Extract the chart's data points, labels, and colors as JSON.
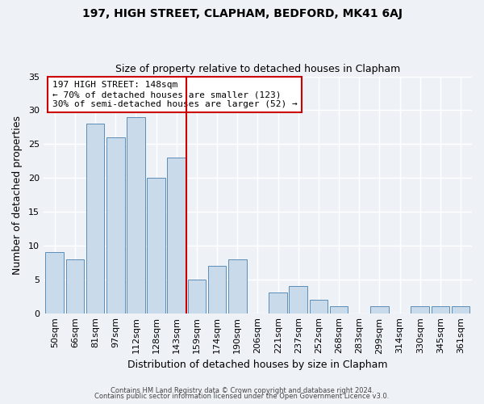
{
  "title": "197, HIGH STREET, CLAPHAM, BEDFORD, MK41 6AJ",
  "subtitle": "Size of property relative to detached houses in Clapham",
  "xlabel": "Distribution of detached houses by size in Clapham",
  "ylabel": "Number of detached properties",
  "bar_labels": [
    "50sqm",
    "66sqm",
    "81sqm",
    "97sqm",
    "112sqm",
    "128sqm",
    "143sqm",
    "159sqm",
    "174sqm",
    "190sqm",
    "206sqm",
    "221sqm",
    "237sqm",
    "252sqm",
    "268sqm",
    "283sqm",
    "299sqm",
    "314sqm",
    "330sqm",
    "345sqm",
    "361sqm"
  ],
  "bar_values": [
    9,
    8,
    28,
    26,
    29,
    20,
    23,
    5,
    7,
    8,
    0,
    3,
    4,
    2,
    1,
    0,
    1,
    0,
    1,
    1,
    1
  ],
  "bar_color": "#c9daea",
  "bar_edgecolor": "#5b8db8",
  "ylim": [
    0,
    35
  ],
  "yticks": [
    0,
    5,
    10,
    15,
    20,
    25,
    30,
    35
  ],
  "vline_color": "#cc0000",
  "annotation_title": "197 HIGH STREET: 148sqm",
  "annotation_line1": "← 70% of detached houses are smaller (123)",
  "annotation_line2": "30% of semi-detached houses are larger (52) →",
  "annotation_box_edgecolor": "#cc0000",
  "annotation_box_facecolor": "#ffffff",
  "background_color": "#eef2f7",
  "grid_color": "#ffffff",
  "footer1": "Contains HM Land Registry data © Crown copyright and database right 2024.",
  "footer2": "Contains public sector information licensed under the Open Government Licence v3.0."
}
